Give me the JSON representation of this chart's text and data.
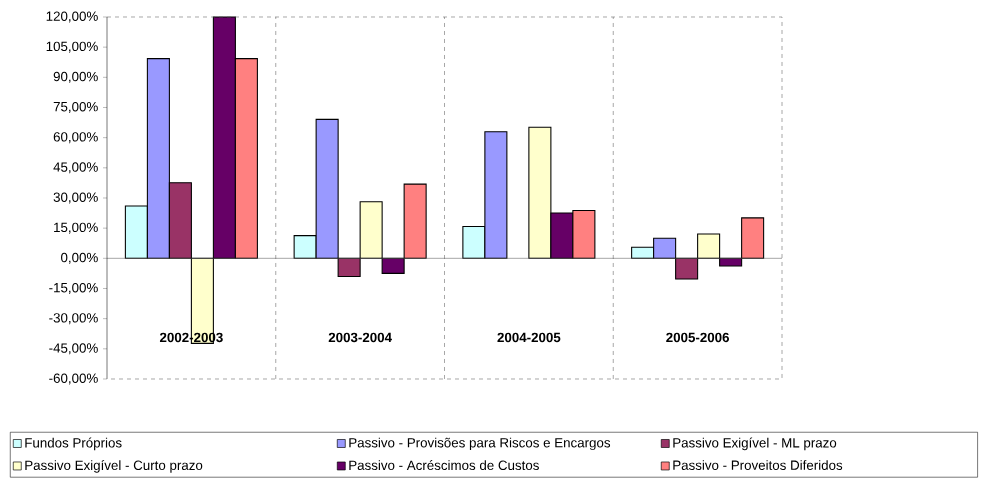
{
  "chart_data": {
    "type": "bar",
    "categories": [
      "2002-2003",
      "2003-2004",
      "2004-2005",
      "2005-2006"
    ],
    "series": [
      {
        "name": "Fundos Próprios",
        "color": "#ccffff",
        "values": [
          26,
          11.3,
          15.8,
          5.5
        ]
      },
      {
        "name": "Passivo - Provisões para Riscos e Encargos",
        "color": "#9999ff",
        "values": [
          99.3,
          69.1,
          62.9,
          10
        ]
      },
      {
        "name": "Passivo Exigível - ML prazo",
        "color": "#993366",
        "values": [
          37.6,
          -9,
          null,
          -10.3
        ]
      },
      {
        "name": "Passivo Exigível - Curto prazo",
        "color": "#ffffcc",
        "values": [
          -42.3,
          28.1,
          65.2,
          12.1
        ]
      },
      {
        "name": "Passivo - Acréscimos de Custos",
        "color": "#660066",
        "values": [
          120,
          -7.5,
          22.5,
          -3.8
        ]
      },
      {
        "name": "Passivo - Proveitos Diferidos",
        "color": "#ff8080",
        "values": [
          99.3,
          36.9,
          23.8,
          20.1
        ]
      }
    ],
    "ylim": [
      -60,
      120
    ],
    "yticks": [
      {
        "value": -60,
        "label": "-60,00%"
      },
      {
        "value": -45,
        "label": "-45,00%"
      },
      {
        "value": -30,
        "label": "-30,00%"
      },
      {
        "value": -15,
        "label": "-15,00%"
      },
      {
        "value": 0,
        "label": "0,00%"
      },
      {
        "value": 15,
        "label": "15,00%"
      },
      {
        "value": 30,
        "label": "30,00%"
      },
      {
        "value": 45,
        "label": "45,00%"
      },
      {
        "value": 60,
        "label": "60,00%"
      },
      {
        "value": 75,
        "label": "75,00%"
      },
      {
        "value": 90,
        "label": "90,00%"
      },
      {
        "value": 105,
        "label": "105,00%"
      },
      {
        "value": 120,
        "label": "120,00%"
      }
    ],
    "grid": "x",
    "legend": "bottom"
  }
}
